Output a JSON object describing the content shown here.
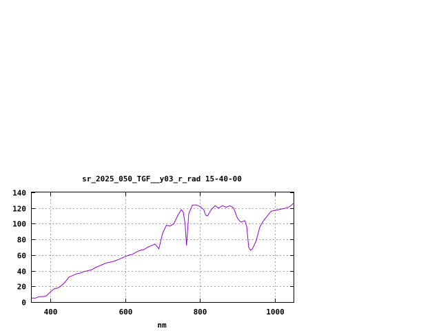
{
  "chart_data": {
    "type": "line",
    "title": "sr_2025_050_TGF__y03_r_rad 15-40-00",
    "xlabel": "nm",
    "ylabel": "",
    "xlim": [
      350,
      1050
    ],
    "ylim": [
      0,
      140
    ],
    "xticks": [
      400,
      600,
      800,
      1000
    ],
    "yticks": [
      0,
      20,
      40,
      60,
      80,
      100,
      120,
      140
    ],
    "grid": true,
    "line_color": "#9400d3",
    "series": [
      {
        "x": [
          350,
          360,
          370,
          380,
          390,
          400,
          410,
          420,
          430,
          440,
          450,
          460,
          470,
          480,
          490,
          500,
          510,
          520,
          530,
          540,
          550,
          560,
          570,
          580,
          590,
          600,
          610,
          620,
          630,
          640,
          650,
          660,
          670,
          680,
          690,
          700,
          710,
          720,
          730,
          740,
          750,
          755,
          760,
          764,
          770,
          780,
          790,
          800,
          810,
          815,
          820,
          830,
          840,
          850,
          860,
          870,
          880,
          890,
          900,
          905,
          910,
          920,
          925,
          930,
          935,
          940,
          950,
          960,
          970,
          980,
          990,
          1000,
          1010,
          1020,
          1030,
          1040,
          1050
        ],
        "y": [
          5,
          5,
          7,
          7,
          8,
          13,
          17,
          18,
          21,
          26,
          32,
          34,
          36,
          37,
          39,
          40,
          41,
          44,
          46,
          48,
          50,
          51,
          52,
          54,
          56,
          58,
          60,
          61,
          64,
          66,
          67,
          70,
          72,
          74,
          68,
          88,
          98,
          97,
          100,
          110,
          118,
          115,
          100,
          72,
          113,
          124,
          124,
          122,
          118,
          111,
          110,
          118,
          123,
          120,
          123,
          121,
          123,
          120,
          107,
          104,
          102,
          104,
          96,
          70,
          66,
          68,
          78,
          96,
          104,
          110,
          116,
          117,
          118,
          119,
          120,
          122,
          126
        ]
      }
    ]
  }
}
